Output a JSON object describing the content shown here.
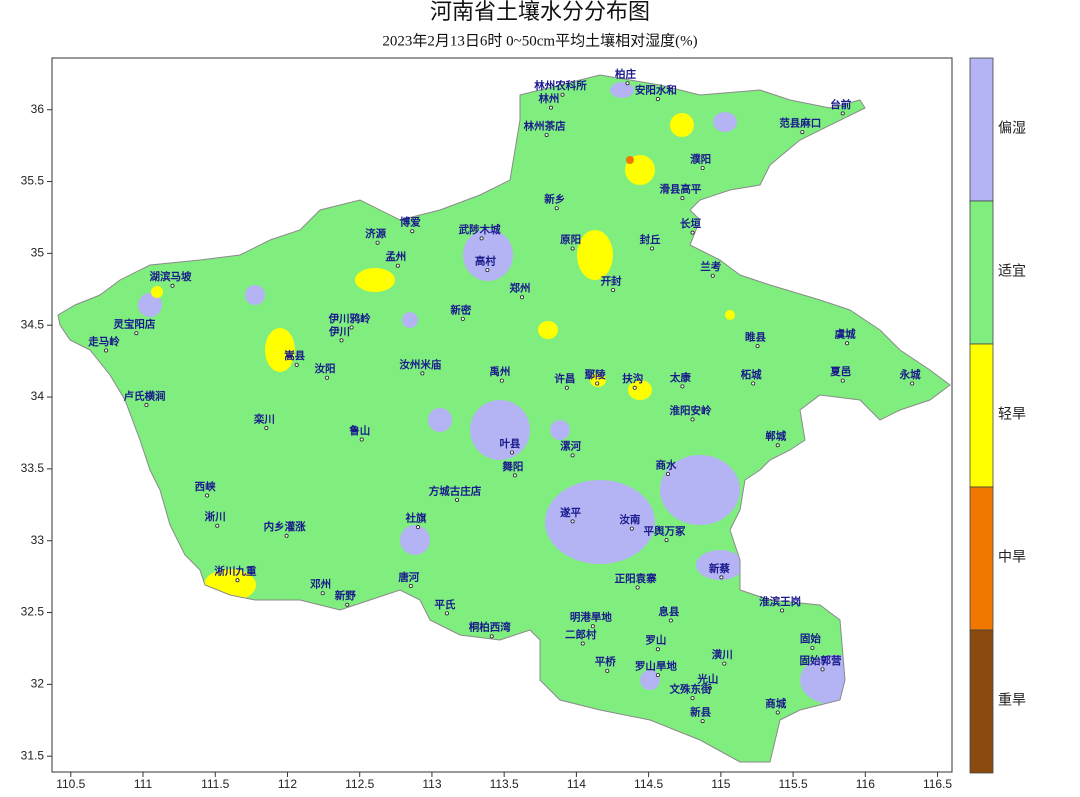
{
  "title": "河南省土壤水分分布图",
  "subtitle": "2023年2月13日6时 0~50cm平均土壤相对湿度(%)",
  "axes": {
    "xlim": [
      110.37,
      116.6
    ],
    "ylim": [
      31.39,
      36.36
    ],
    "xticks": [
      110.5,
      111,
      111.5,
      112,
      112.5,
      113,
      113.5,
      114,
      114.5,
      115,
      115.5,
      116,
      116.5
    ],
    "yticks": [
      31.5,
      32,
      32.5,
      33,
      33.5,
      34,
      34.5,
      35,
      35.5,
      36
    ]
  },
  "legend": [
    {
      "label": "偏湿",
      "color": "#b4b4f4"
    },
    {
      "label": "适宜",
      "color": "#7fee7f"
    },
    {
      "label": "轻旱",
      "color": "#ffff00"
    },
    {
      "label": "中旱",
      "color": "#f07800"
    },
    {
      "label": "重旱",
      "color": "#8b4a10"
    }
  ],
  "stations": [
    {
      "name": "林州农科所",
      "lon": 113.89,
      "lat": 36.16
    },
    {
      "name": "柏庄",
      "lon": 114.34,
      "lat": 36.24
    },
    {
      "name": "安阳水和",
      "lon": 114.55,
      "lat": 36.13
    },
    {
      "name": "林州",
      "lon": 113.81,
      "lat": 36.07
    },
    {
      "name": "林州茶店",
      "lon": 113.78,
      "lat": 35.88
    },
    {
      "name": "台前",
      "lon": 115.83,
      "lat": 36.03
    },
    {
      "name": "范县麻口",
      "lon": 115.55,
      "lat": 35.9
    },
    {
      "name": "濮阳",
      "lon": 114.86,
      "lat": 35.65
    },
    {
      "name": "滑县高平",
      "lon": 114.72,
      "lat": 35.44
    },
    {
      "name": "新乡",
      "lon": 113.85,
      "lat": 35.37
    },
    {
      "name": "原阳",
      "lon": 113.96,
      "lat": 35.09
    },
    {
      "name": "封丘",
      "lon": 114.51,
      "lat": 35.09
    },
    {
      "name": "长垣",
      "lon": 114.79,
      "lat": 35.2
    },
    {
      "name": "济源",
      "lon": 112.61,
      "lat": 35.13
    },
    {
      "name": "孟州",
      "lon": 112.75,
      "lat": 34.97
    },
    {
      "name": "武陟木城",
      "lon": 113.33,
      "lat": 35.16
    },
    {
      "name": "博爱",
      "lon": 112.85,
      "lat": 35.21
    },
    {
      "name": "高村",
      "lon": 113.37,
      "lat": 34.94
    },
    {
      "name": "郑州",
      "lon": 113.61,
      "lat": 34.75
    },
    {
      "name": "开封",
      "lon": 114.24,
      "lat": 34.8
    },
    {
      "name": "兰考",
      "lon": 114.93,
      "lat": 34.9
    },
    {
      "name": "新密",
      "lon": 113.2,
      "lat": 34.6
    },
    {
      "name": "湖滨马坡",
      "lon": 111.19,
      "lat": 34.83
    },
    {
      "name": "灵宝阳店",
      "lon": 110.94,
      "lat": 34.5
    },
    {
      "name": "走马岭",
      "lon": 110.73,
      "lat": 34.38
    },
    {
      "name": "卢氏横涧",
      "lon": 111.01,
      "lat": 34.0
    },
    {
      "name": "嵩县",
      "lon": 112.05,
      "lat": 34.28
    },
    {
      "name": "伊川",
      "lon": 112.36,
      "lat": 34.45
    },
    {
      "name": "伊川鸦岭",
      "lon": 112.43,
      "lat": 34.54
    },
    {
      "name": "汝阳",
      "lon": 112.26,
      "lat": 34.19
    },
    {
      "name": "汝州米庙",
      "lon": 112.92,
      "lat": 34.22
    },
    {
      "name": "禹州",
      "lon": 113.47,
      "lat": 34.17
    },
    {
      "name": "许昌",
      "lon": 113.92,
      "lat": 34.12
    },
    {
      "name": "鄢陵",
      "lon": 114.13,
      "lat": 34.15
    },
    {
      "name": "扶沟",
      "lon": 114.39,
      "lat": 34.12
    },
    {
      "name": "太康",
      "lon": 114.72,
      "lat": 34.13
    },
    {
      "name": "柘城",
      "lon": 115.21,
      "lat": 34.15
    },
    {
      "name": "夏邑",
      "lon": 115.83,
      "lat": 34.17
    },
    {
      "name": "永城",
      "lon": 116.31,
      "lat": 34.15
    },
    {
      "name": "虞城",
      "lon": 115.86,
      "lat": 34.43
    },
    {
      "name": "睢县",
      "lon": 115.24,
      "lat": 34.41
    },
    {
      "name": "鲁山",
      "lon": 112.5,
      "lat": 33.76
    },
    {
      "name": "叶县",
      "lon": 113.54,
      "lat": 33.67
    },
    {
      "name": "舞阳",
      "lon": 113.56,
      "lat": 33.51
    },
    {
      "name": "漯河",
      "lon": 113.96,
      "lat": 33.65
    },
    {
      "name": "淮阳安岭",
      "lon": 114.79,
      "lat": 33.9
    },
    {
      "name": "郸城",
      "lon": 115.38,
      "lat": 33.72
    },
    {
      "name": "商水",
      "lon": 114.62,
      "lat": 33.52
    },
    {
      "name": "栾川",
      "lon": 111.84,
      "lat": 33.84
    },
    {
      "name": "西峡",
      "lon": 111.43,
      "lat": 33.37
    },
    {
      "name": "淅川",
      "lon": 111.5,
      "lat": 33.16
    },
    {
      "name": "内乡灌涨",
      "lon": 111.98,
      "lat": 33.09
    },
    {
      "name": "方城古庄店",
      "lon": 113.16,
      "lat": 33.34
    },
    {
      "name": "社旗",
      "lon": 112.89,
      "lat": 33.15
    },
    {
      "name": "唐河",
      "lon": 112.84,
      "lat": 32.74
    },
    {
      "name": "新野",
      "lon": 112.4,
      "lat": 32.61
    },
    {
      "name": "邓州",
      "lon": 112.23,
      "lat": 32.69
    },
    {
      "name": "淅川九重",
      "lon": 111.64,
      "lat": 32.78
    },
    {
      "name": "平氏",
      "lon": 113.09,
      "lat": 32.55
    },
    {
      "name": "桐柏西湾",
      "lon": 113.4,
      "lat": 32.39
    },
    {
      "name": "遂平",
      "lon": 113.96,
      "lat": 33.19
    },
    {
      "name": "汝南",
      "lon": 114.37,
      "lat": 33.14
    },
    {
      "name": "平舆万冢",
      "lon": 114.61,
      "lat": 33.06
    },
    {
      "name": "新蔡",
      "lon": 114.99,
      "lat": 32.8
    },
    {
      "name": "正阳袁寨",
      "lon": 114.41,
      "lat": 32.73
    },
    {
      "name": "息县",
      "lon": 114.64,
      "lat": 32.5
    },
    {
      "name": "明港旱地",
      "lon": 114.1,
      "lat": 32.46
    },
    {
      "name": "二郎村",
      "lon": 114.03,
      "lat": 32.34
    },
    {
      "name": "罗山",
      "lon": 114.55,
      "lat": 32.3
    },
    {
      "name": "淮滨王岗",
      "lon": 115.41,
      "lat": 32.57
    },
    {
      "name": "固始",
      "lon": 115.62,
      "lat": 32.31
    },
    {
      "name": "固始郭营",
      "lon": 115.69,
      "lat": 32.16
    },
    {
      "name": "潢川",
      "lon": 115.01,
      "lat": 32.2
    },
    {
      "name": "光山",
      "lon": 114.91,
      "lat": 32.03
    },
    {
      "name": "平桥",
      "lon": 114.2,
      "lat": 32.15
    },
    {
      "name": "罗山旱地",
      "lon": 114.55,
      "lat": 32.12
    },
    {
      "name": "文殊东街",
      "lon": 114.79,
      "lat": 31.96
    },
    {
      "name": "新县",
      "lon": 114.86,
      "lat": 31.8
    },
    {
      "name": "商城",
      "lon": 115.38,
      "lat": 31.86
    }
  ]
}
